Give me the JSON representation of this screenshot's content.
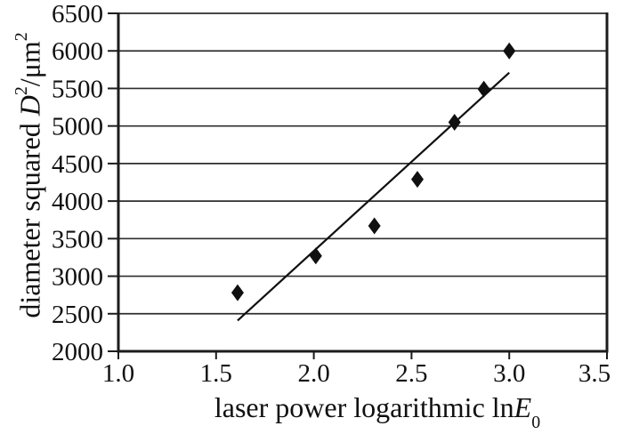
{
  "labels": {
    "x": {
      "prefix": "laser power logarithmic ln",
      "var": "E",
      "sub": "0"
    },
    "y": {
      "prefix": "diameter squared ",
      "var": "D",
      "sup1": "2",
      "mid": "/μm",
      "sup2": "2"
    }
  },
  "chart_data": {
    "type": "scatter",
    "title": "",
    "xlabel": "laser power logarithmic lnE0",
    "ylabel": "diameter squared D2/μm2",
    "xlim": [
      1.0,
      3.5
    ],
    "ylim": [
      2000,
      6500
    ],
    "x_ticks": [
      "1.0",
      "1.5",
      "2.0",
      "2.5",
      "3.0",
      "3.5"
    ],
    "y_ticks": [
      "2000",
      "2500",
      "3000",
      "3500",
      "4000",
      "4500",
      "5000",
      "5500",
      "6000",
      "6500"
    ],
    "grid": "horizontal-only",
    "legend": "none",
    "series": [
      {
        "name": "measured data points",
        "kind": "scatter",
        "marker": "diamond",
        "color": "#101010",
        "points": [
          [
            1.61,
            2780
          ],
          [
            2.01,
            3270
          ],
          [
            2.31,
            3670
          ],
          [
            2.53,
            4290
          ],
          [
            2.72,
            5050
          ],
          [
            2.87,
            5490
          ],
          [
            3.0,
            6000
          ]
        ]
      },
      {
        "name": "trend line",
        "kind": "line",
        "color": "#101010",
        "points": [
          [
            1.61,
            2410
          ],
          [
            3.0,
            5710
          ]
        ]
      }
    ],
    "colors": {
      "axis": "#1c1c1c",
      "grid": "#2e2e2e",
      "text": "#101010",
      "background": "#ffffff"
    }
  }
}
